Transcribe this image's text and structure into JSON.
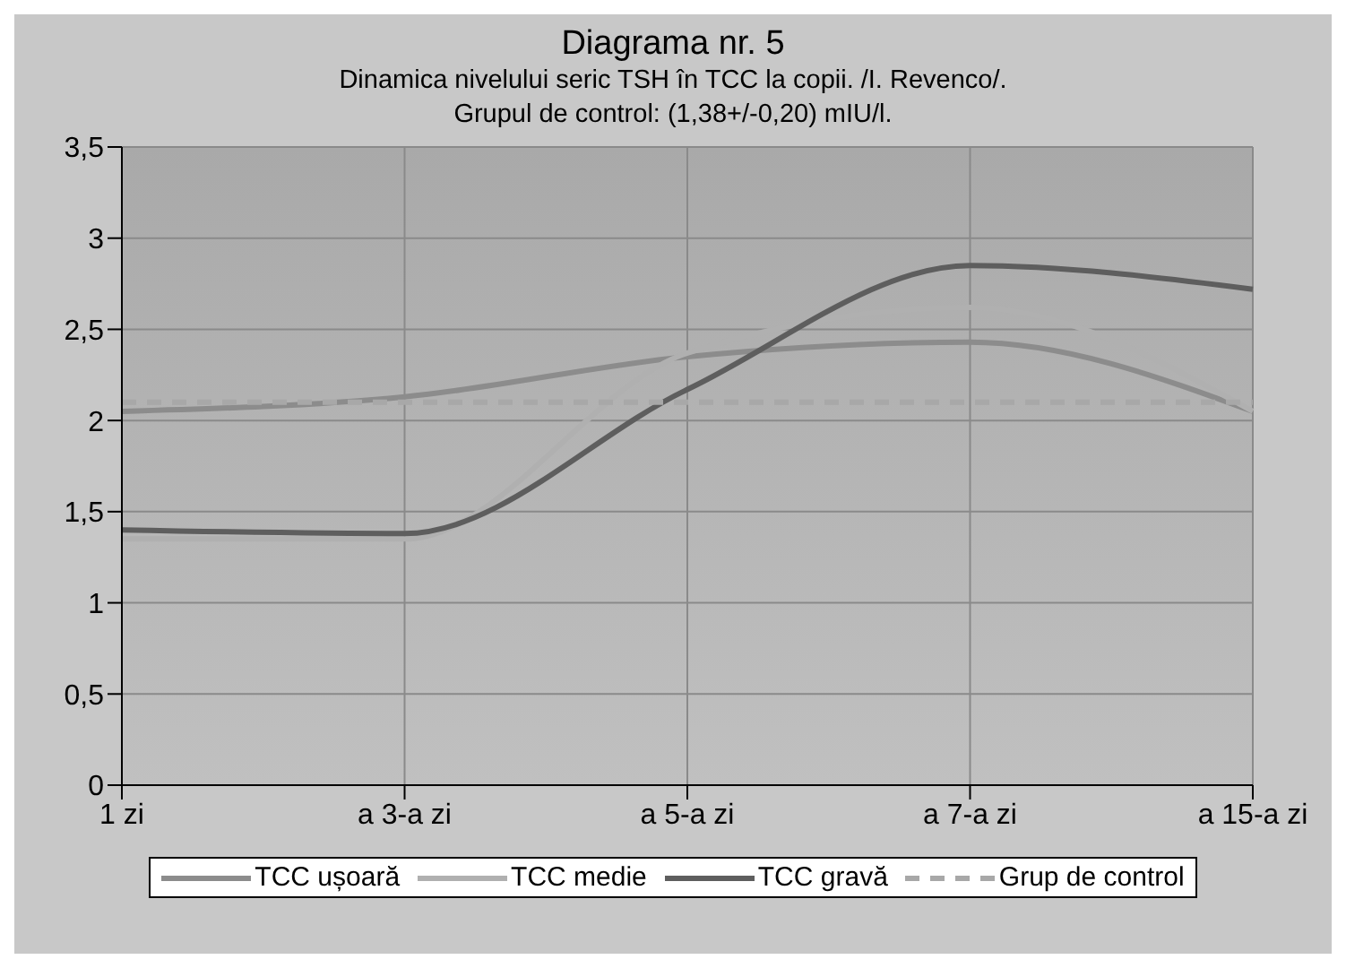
{
  "chart_data": {
    "type": "line",
    "title": "Diagrama nr. 5",
    "subtitle": "Dinamica nivelului seric TSH în TCC la copii. /I. Revenco/.\nGrupul de control: (1,38+/-0,20) mIU/l.",
    "categories": [
      "1 zi",
      "a 3-a zi",
      "a 5-a zi",
      "a 7-a zi",
      "a 15-a zi"
    ],
    "series": [
      {
        "name": "TCC ușoară",
        "color": "#8c8c8c",
        "values": [
          2.05,
          2.13,
          2.35,
          2.43,
          2.05
        ]
      },
      {
        "name": "TCC medie",
        "color": "#b0b0b0",
        "values": [
          1.35,
          1.35,
          2.37,
          2.62,
          2.05
        ]
      },
      {
        "name": "TCC gravă",
        "color": "#5e5e5e",
        "values": [
          1.4,
          1.38,
          2.17,
          2.85,
          2.72
        ]
      },
      {
        "name": "Grup de control",
        "color": "#a8a8a8",
        "line_style": "dashed",
        "values": [
          2.1,
          2.1,
          2.1,
          2.1,
          2.1
        ]
      }
    ],
    "ylim": [
      0,
      3.5
    ],
    "yticks": [
      0,
      {
        "value": 0.5,
        "label": "0,5"
      },
      1,
      {
        "value": 1.5,
        "label": "1,5"
      },
      2,
      {
        "value": 2.5,
        "label": "2,5"
      },
      3,
      {
        "value": 3.5,
        "label": "3,5"
      }
    ],
    "grid": true,
    "legend": "bottom",
    "marker": "none",
    "line_style": "solid"
  }
}
